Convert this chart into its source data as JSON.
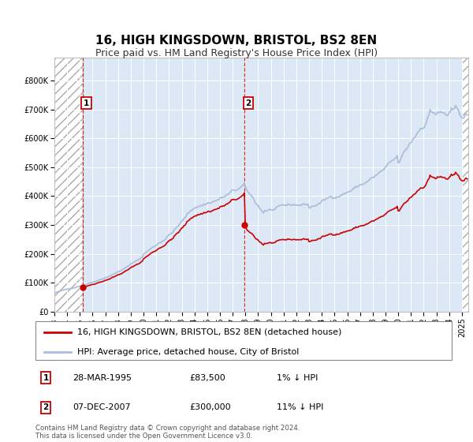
{
  "title": "16, HIGH KINGSDOWN, BRISTOL, BS2 8EN",
  "subtitle": "Price paid vs. HM Land Registry's House Price Index (HPI)",
  "ylim": [
    0,
    880000
  ],
  "yticks": [
    0,
    100000,
    200000,
    300000,
    400000,
    500000,
    600000,
    700000,
    800000
  ],
  "ytick_labels": [
    "£0",
    "£100K",
    "£200K",
    "£300K",
    "£400K",
    "£500K",
    "£600K",
    "£700K",
    "£800K"
  ],
  "hpi_color": "#aabcda",
  "price_color": "#cc0000",
  "annotation_color": "#cc0000",
  "background_color": "#dce8f5",
  "purchases": [
    {
      "date_num": 1995.22,
      "price": 83500,
      "label": "1",
      "date_str": "28-MAR-1995",
      "hpi_pct": "1% ↓ HPI"
    },
    {
      "date_num": 2007.93,
      "price": 300000,
      "label": "2",
      "date_str": "07-DEC-2007",
      "hpi_pct": "11% ↓ HPI"
    }
  ],
  "xlim": [
    1993.0,
    2025.5
  ],
  "xticks": [
    1993,
    1994,
    1995,
    1996,
    1997,
    1998,
    1999,
    2000,
    2001,
    2002,
    2003,
    2004,
    2005,
    2006,
    2007,
    2008,
    2009,
    2010,
    2011,
    2012,
    2013,
    2014,
    2015,
    2016,
    2017,
    2018,
    2019,
    2020,
    2021,
    2022,
    2023,
    2024,
    2025
  ],
  "legend_line1": "16, HIGH KINGSDOWN, BRISTOL, BS2 8EN (detached house)",
  "legend_line2": "HPI: Average price, detached house, City of Bristol",
  "footnote": "Contains HM Land Registry data © Crown copyright and database right 2024.\nThis data is licensed under the Open Government Licence v3.0.",
  "title_fontsize": 11,
  "subtitle_fontsize": 9,
  "tick_fontsize": 7,
  "legend_fontsize": 8
}
